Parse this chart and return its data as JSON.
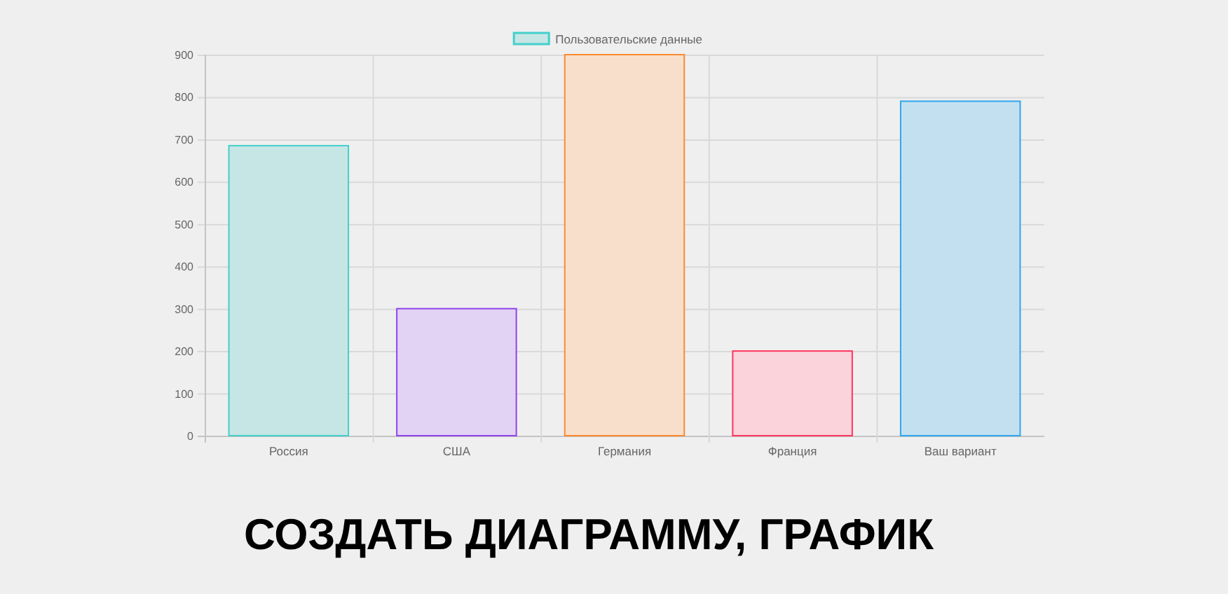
{
  "chart_data": {
    "type": "bar",
    "categories": [
      "Россия",
      "США",
      "Германия",
      "Франция",
      "Ваш вариант"
    ],
    "series": [
      {
        "name": "Пользовательские данные",
        "values": [
          685,
          300,
          900,
          200,
          790
        ],
        "colors": [
          "#c6e6e5",
          "#e2d3f4",
          "#f8dfcb",
          "#fad3db",
          "#c3e0f1"
        ]
      }
    ],
    "ylim": [
      0,
      900
    ],
    "yticks": [
      0,
      100,
      200,
      300,
      400,
      500,
      600,
      700,
      800,
      900
    ],
    "grid": true,
    "legend": "top",
    "annotations": [
      "СОЗДАТЬ ДИАГРАММУ, ГРАФИК"
    ]
  }
}
